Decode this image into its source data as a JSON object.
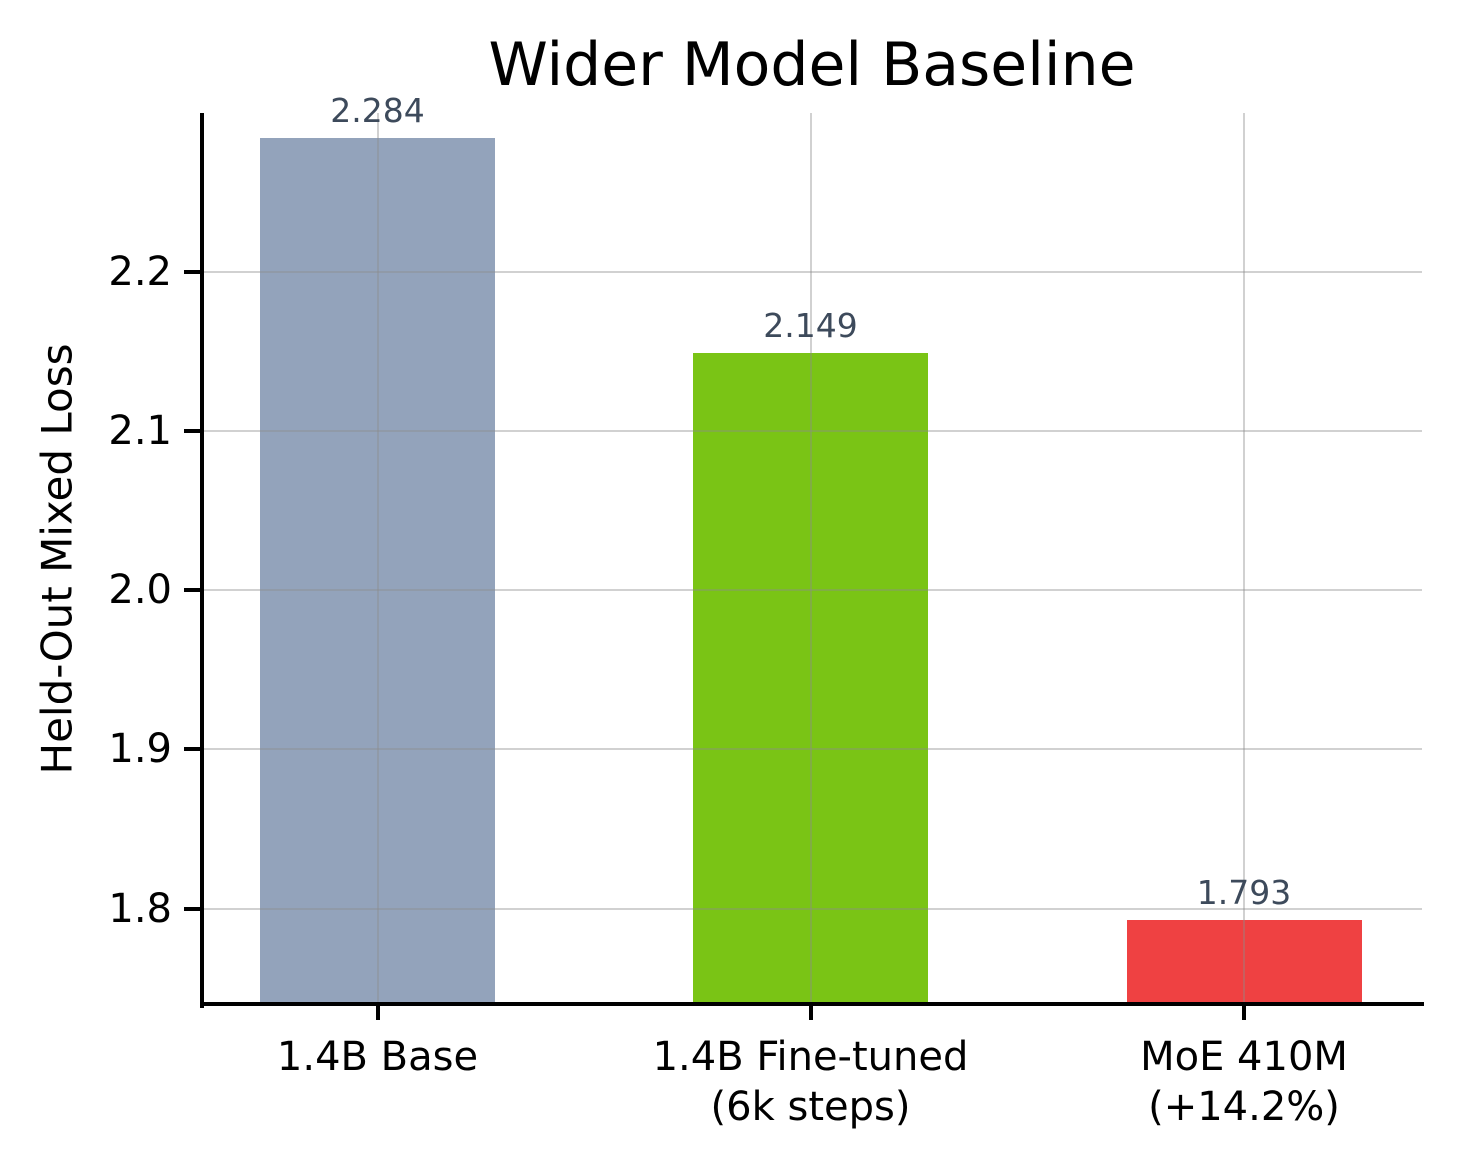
{
  "chart_data": {
    "type": "bar",
    "title": "Wider Model Baseline",
    "xlabel": "",
    "ylabel": "Held-Out Mixed Loss",
    "categories": [
      [
        "1.4B Base"
      ],
      [
        "1.4B Fine-tuned",
        "(6k steps)"
      ],
      [
        "MoE 410M",
        "(+14.2%)"
      ]
    ],
    "values": [
      2.284,
      2.149,
      1.793
    ],
    "value_labels": [
      "2.284",
      "2.149",
      "1.793"
    ],
    "bar_colors": [
      "#93a3bb",
      "#7ac415",
      "#ef4142"
    ],
    "value_label_color": "#3d4a5b",
    "yticks": [
      1.8,
      1.9,
      2.0,
      2.1,
      2.2
    ],
    "ytick_labels": [
      "1.8",
      "1.9",
      "2.0",
      "2.1",
      "2.2"
    ],
    "ylim": [
      1.74,
      2.3
    ],
    "grid": true,
    "grid_on_top": true,
    "legend": false,
    "axis_color": "#000000"
  }
}
